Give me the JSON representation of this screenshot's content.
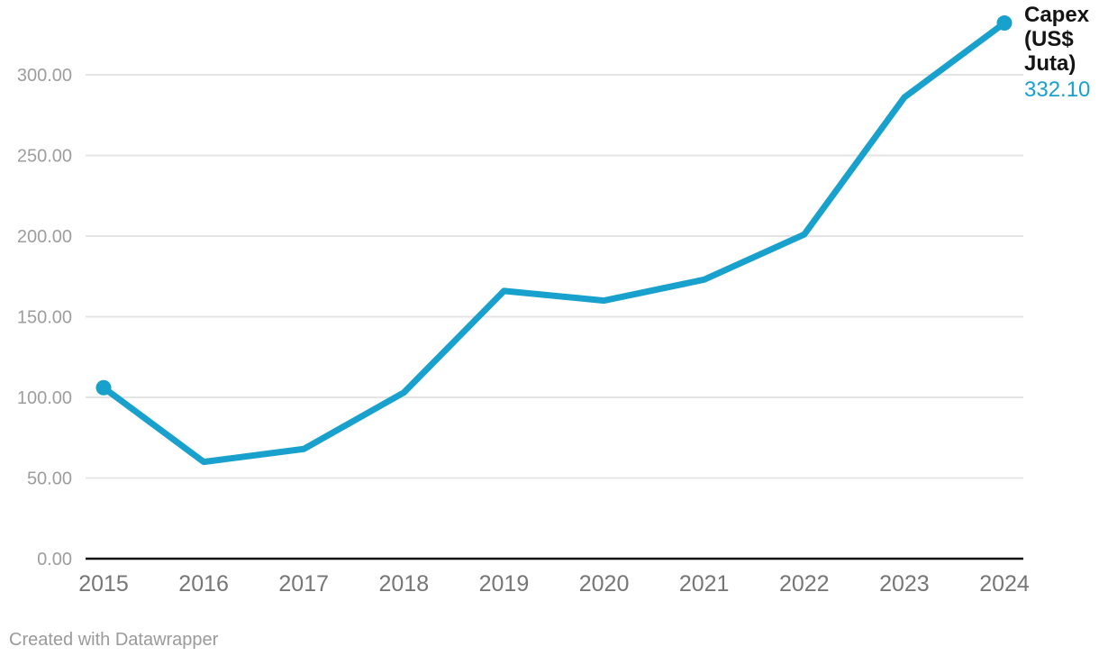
{
  "chart_data": {
    "type": "line",
    "title": "",
    "series_label": "Capex (US$ Juta)",
    "last_value_label": "332.10",
    "categories": [
      "2015",
      "2016",
      "2017",
      "2018",
      "2019",
      "2020",
      "2021",
      "2022",
      "2023",
      "2024"
    ],
    "values": [
      106,
      60,
      68,
      103,
      166,
      160,
      173,
      201,
      286,
      332.1
    ],
    "y_ticks": [
      0,
      50,
      100,
      150,
      200,
      250,
      300
    ],
    "y_tick_labels": [
      "0.00",
      "50.00",
      "100.00",
      "150.00",
      "200.00",
      "250.00",
      "300.00"
    ],
    "ylim": [
      0,
      335
    ],
    "xlabel": "",
    "ylabel": "",
    "grid": true,
    "legend_position": "right-of-last-point",
    "endpoint_dots": true,
    "colors": {
      "line": "#18a1cd",
      "gridline": "#e4e4e4",
      "axis": "#111111",
      "y_tick_text": "#9d9d9d",
      "x_tick_text": "#767676",
      "series_name_text": "#141414"
    }
  },
  "footer": {
    "attribution": "Created with Datawrapper"
  }
}
